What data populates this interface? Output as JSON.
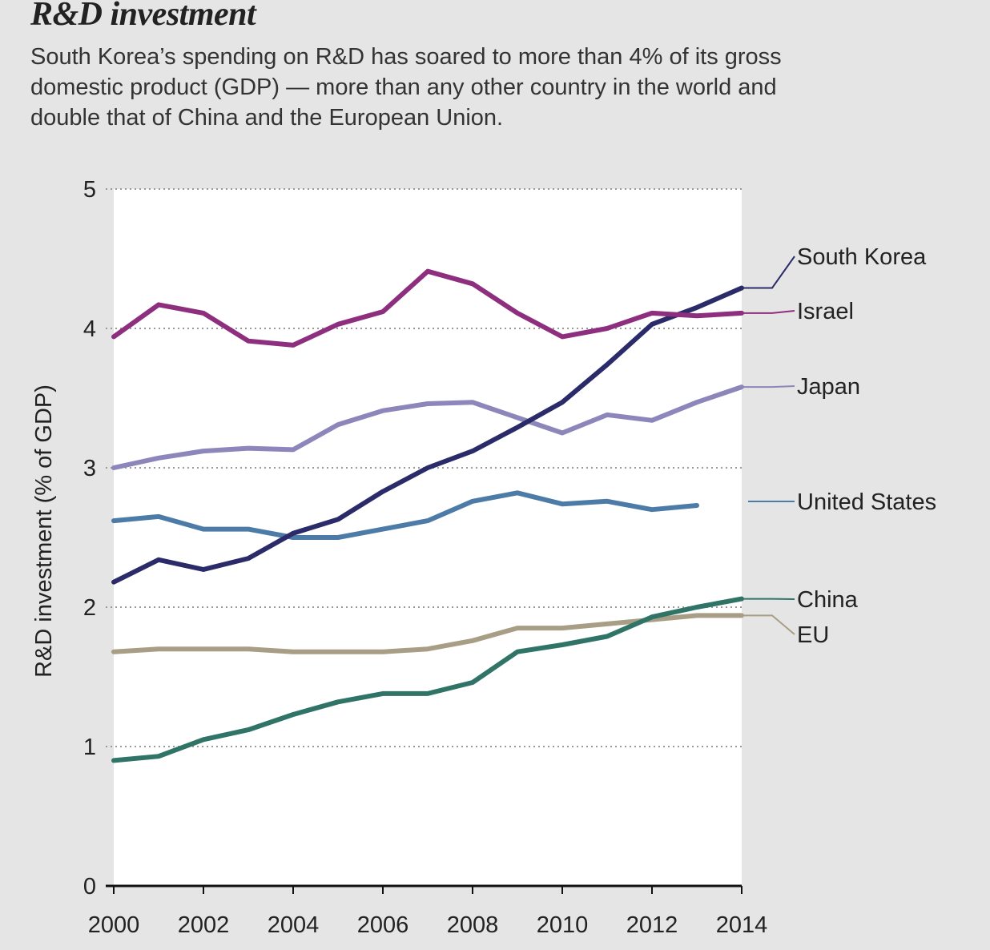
{
  "header": {
    "title": "R&D investment",
    "subtitle": "South Korea’s spending on R&D has soared to more than 4% of its gross domestic product (GDP) — more than any other country in the world and double that of China and the European Union."
  },
  "chart_data": {
    "type": "line",
    "title": "R&D investment",
    "xlabel": "",
    "ylabel": "R&D investment (% of GDP)",
    "xlim": [
      2000,
      2014
    ],
    "ylim": [
      0,
      5
    ],
    "grid": true,
    "legend": "right, inline labels",
    "x_ticks": [
      "2000",
      "2002",
      "2004",
      "2006",
      "2008",
      "2010",
      "2012",
      "2014"
    ],
    "y_ticks": [
      "0",
      "1",
      "2",
      "3",
      "4",
      "5"
    ],
    "x": [
      2000,
      2001,
      2002,
      2003,
      2004,
      2005,
      2006,
      2007,
      2008,
      2009,
      2010,
      2011,
      2012,
      2013,
      2014
    ],
    "series": [
      {
        "name": "EU",
        "color": "#a89e86",
        "values": [
          1.68,
          1.7,
          1.7,
          1.7,
          1.68,
          1.68,
          1.68,
          1.7,
          1.76,
          1.85,
          1.85,
          1.88,
          1.91,
          1.94,
          1.94
        ]
      },
      {
        "name": "China",
        "color": "#2f7466",
        "values": [
          0.9,
          0.93,
          1.05,
          1.12,
          1.23,
          1.32,
          1.38,
          1.38,
          1.46,
          1.68,
          1.73,
          1.79,
          1.93,
          2.0,
          2.06
        ]
      },
      {
        "name": "United States",
        "color": "#4d7ba7",
        "values": [
          2.62,
          2.65,
          2.56,
          2.56,
          2.5,
          2.5,
          2.56,
          2.62,
          2.76,
          2.82,
          2.74,
          2.76,
          2.7,
          2.73,
          null
        ]
      },
      {
        "name": "Japan",
        "color": "#8c86bb",
        "values": [
          3.0,
          3.07,
          3.12,
          3.14,
          3.13,
          3.31,
          3.41,
          3.46,
          3.47,
          3.36,
          3.25,
          3.38,
          3.34,
          3.47,
          3.58
        ]
      },
      {
        "name": "South Korea",
        "color": "#2b2b6a",
        "values": [
          2.18,
          2.34,
          2.27,
          2.35,
          2.53,
          2.63,
          2.83,
          3.0,
          3.12,
          3.29,
          3.47,
          3.74,
          4.03,
          4.15,
          4.29
        ]
      },
      {
        "name": "Israel",
        "color": "#8e2e7e",
        "values": [
          3.94,
          4.17,
          4.11,
          3.91,
          3.88,
          4.03,
          4.12,
          4.41,
          4.32,
          4.11,
          3.94,
          4.0,
          4.11,
          4.09,
          4.11
        ]
      }
    ]
  }
}
